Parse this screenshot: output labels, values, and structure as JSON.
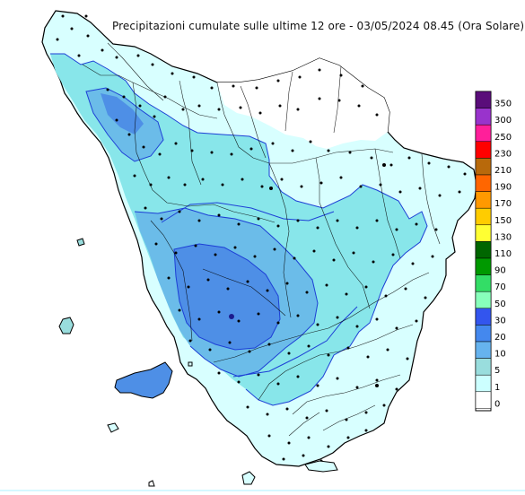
{
  "title": "Precipitazioni cumulate sulle ultime 12 ore - 03/05/2024 08.45 (Ora Solare)",
  "legend": {
    "classes": [
      {
        "label": "350",
        "color": "#5a0d7a"
      },
      {
        "label": "300",
        "color": "#9933cc"
      },
      {
        "label": "250",
        "color": "#ff1f9a"
      },
      {
        "label": "230",
        "color": "#ff0000"
      },
      {
        "label": "210",
        "color": "#b8690b"
      },
      {
        "label": "190",
        "color": "#ff6600"
      },
      {
        "label": "170",
        "color": "#ff9900"
      },
      {
        "label": "150",
        "color": "#ffcc00"
      },
      {
        "label": "130",
        "color": "#ffff33"
      },
      {
        "label": "110",
        "color": "#006600"
      },
      {
        "label": "90",
        "color": "#009900"
      },
      {
        "label": "70",
        "color": "#33dd66"
      },
      {
        "label": "50",
        "color": "#88ffbb"
      },
      {
        "label": "30",
        "color": "#3355ee"
      },
      {
        "label": "20",
        "color": "#4488ee"
      },
      {
        "label": "10",
        "color": "#66b3ee"
      },
      {
        "label": "5",
        "color": "#99dddd"
      },
      {
        "label": "1",
        "color": "#ccffff"
      },
      {
        "label": "0",
        "color": "#ffffff"
      }
    ]
  },
  "colors": {
    "no_rain": "#ffffff",
    "rain_1_5": "#d8ffff",
    "rain_5_10": "#88e6ea",
    "rain_10_20": "#6bbce9",
    "rain_20_30": "#4e8fe6",
    "border": "#000000",
    "isoline": "#1d3fd6"
  }
}
